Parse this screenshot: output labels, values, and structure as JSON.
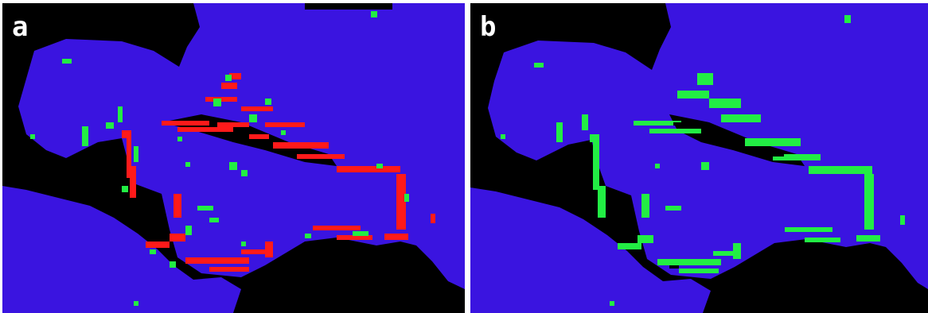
{
  "figure": {
    "panels": [
      {
        "id": "a",
        "label": "a"
      },
      {
        "id": "b",
        "label": "b"
      }
    ]
  },
  "colors": {
    "water": "#3a14e0",
    "land": "#000000",
    "change_red": "#ff1a1a",
    "change_green": "#22ee44",
    "divider": "#ffffff"
  }
}
